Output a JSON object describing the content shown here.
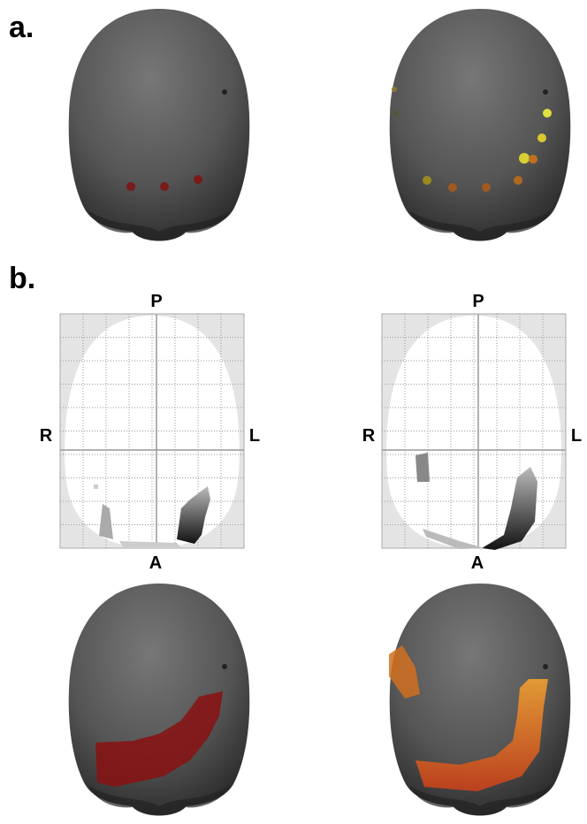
{
  "panel_a": {
    "label": "a."
  },
  "panel_b": {
    "label": "b.",
    "maps": [
      {
        "top": "P",
        "left": "R",
        "right": "L",
        "bottom": "A"
      },
      {
        "top": "P",
        "left": "R",
        "right": "L",
        "bottom": "A"
      }
    ]
  }
}
